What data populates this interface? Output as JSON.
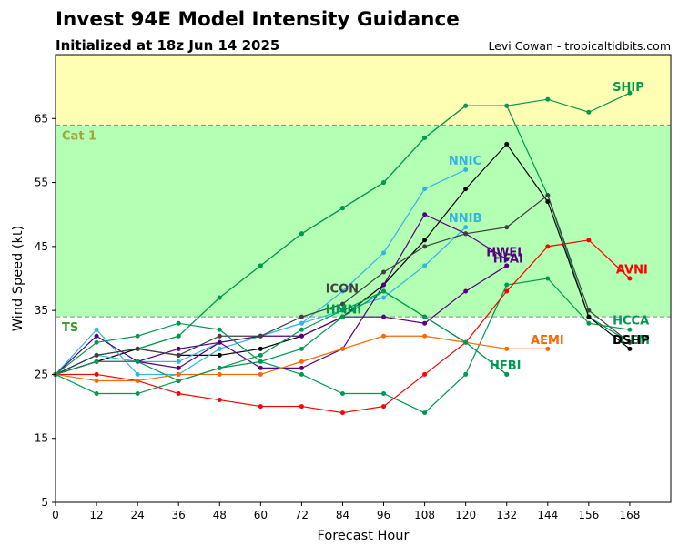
{
  "header": {
    "title": "Invest 94E Model Intensity Guidance",
    "subtitle": "Initialized at 18z Jun 14 2025",
    "credit": "Levi Cowan - tropicaltidbits.com"
  },
  "chart_data": {
    "type": "line",
    "title": "Invest 94E Model Intensity Guidance",
    "subtitle": "Initialized at 18z Jun 14 2025",
    "xlabel": "Forecast Hour",
    "ylabel": "Wind Speed (kt)",
    "xlim": [
      0,
      180
    ],
    "ylim": [
      5,
      75
    ],
    "xticks": [
      0,
      12,
      24,
      36,
      48,
      60,
      72,
      84,
      96,
      108,
      120,
      132,
      144,
      156,
      168
    ],
    "yticks": [
      5,
      15,
      25,
      35,
      45,
      55,
      65
    ],
    "bands": [
      {
        "label": "TS",
        "from": 34,
        "to": 64,
        "color": "#b3ffb3",
        "label_color": "#33a02c"
      },
      {
        "label": "Cat 1",
        "from": 64,
        "to": 75,
        "color": "#ffffb3",
        "label_color": "#a6a633"
      }
    ],
    "series": [
      {
        "name": "SHIP",
        "color": "#009950",
        "label_x": 163,
        "label_y": 70,
        "points": [
          [
            0,
            25
          ],
          [
            12,
            28
          ],
          [
            24,
            29
          ],
          [
            36,
            31
          ],
          [
            48,
            37
          ],
          [
            60,
            42
          ],
          [
            72,
            47
          ],
          [
            84,
            51
          ],
          [
            96,
            55
          ],
          [
            108,
            62
          ],
          [
            120,
            67
          ],
          [
            132,
            67
          ],
          [
            144,
            68
          ],
          [
            156,
            66
          ],
          [
            168,
            69
          ]
        ]
      },
      {
        "name": "LGEM",
        "color": "#009950",
        "label_x": 163,
        "label_y": 30.5,
        "points": [
          [
            0,
            25
          ],
          [
            12,
            28
          ],
          [
            24,
            29
          ],
          [
            36,
            31
          ],
          [
            48,
            37
          ],
          [
            60,
            42
          ],
          [
            72,
            47
          ],
          [
            84,
            51
          ],
          [
            96,
            55
          ],
          [
            108,
            62
          ],
          [
            120,
            67
          ],
          [
            132,
            67
          ],
          [
            144,
            53
          ],
          [
            156,
            34
          ],
          [
            168,
            30
          ]
        ]
      },
      {
        "name": "DSHP",
        "color": "#000000",
        "label_x": 163,
        "label_y": 30.5,
        "points": [
          [
            0,
            25
          ],
          [
            12,
            27
          ],
          [
            24,
            29
          ],
          [
            36,
            28
          ],
          [
            48,
            28
          ],
          [
            60,
            29
          ],
          [
            72,
            31
          ],
          [
            84,
            34
          ],
          [
            96,
            39
          ],
          [
            108,
            46
          ],
          [
            120,
            54
          ],
          [
            132,
            61
          ],
          [
            144,
            52
          ],
          [
            156,
            34
          ],
          [
            168,
            29
          ]
        ]
      },
      {
        "name": "NNIC",
        "color": "#33b3e6",
        "label_x": 115,
        "label_y": 58.5,
        "points": [
          [
            0,
            25
          ],
          [
            12,
            32
          ],
          [
            24,
            25
          ],
          [
            36,
            25
          ],
          [
            48,
            29
          ],
          [
            60,
            31
          ],
          [
            72,
            33
          ],
          [
            84,
            38
          ],
          [
            96,
            44
          ],
          [
            108,
            54
          ],
          [
            120,
            57
          ]
        ]
      },
      {
        "name": "NNIB",
        "color": "#33b3e6",
        "label_x": 115,
        "label_y": 49.5,
        "points": [
          [
            0,
            25
          ],
          [
            12,
            28
          ],
          [
            24,
            27
          ],
          [
            36,
            27
          ],
          [
            48,
            30
          ],
          [
            60,
            31
          ],
          [
            72,
            33
          ],
          [
            84,
            35
          ],
          [
            96,
            37
          ],
          [
            108,
            42
          ],
          [
            120,
            48
          ]
        ]
      },
      {
        "name": "HWFI",
        "color": "#550080",
        "label_x": 126,
        "label_y": 44.2,
        "points": [
          [
            0,
            25
          ],
          [
            12,
            31
          ],
          [
            24,
            27
          ],
          [
            36,
            26
          ],
          [
            48,
            30
          ],
          [
            60,
            26
          ],
          [
            72,
            26
          ],
          [
            84,
            29
          ],
          [
            96,
            39
          ],
          [
            108,
            50
          ],
          [
            120,
            47
          ],
          [
            132,
            43
          ]
        ]
      },
      {
        "name": "HFAI",
        "color": "#550080",
        "label_x": 128,
        "label_y": 43.2,
        "points": [
          [
            0,
            25
          ],
          [
            12,
            27
          ],
          [
            24,
            27
          ],
          [
            36,
            29
          ],
          [
            48,
            30
          ],
          [
            60,
            31
          ],
          [
            72,
            31
          ],
          [
            84,
            34
          ],
          [
            96,
            34
          ],
          [
            108,
            33
          ],
          [
            120,
            38
          ],
          [
            132,
            42
          ]
        ]
      },
      {
        "name": "ICON",
        "color": "#404040",
        "label_x": 79,
        "label_y": 38.5,
        "points": [
          [
            0,
            25
          ],
          [
            12,
            28
          ],
          [
            24,
            29
          ],
          [
            36,
            28
          ],
          [
            48,
            31
          ],
          [
            60,
            31
          ],
          [
            72,
            34
          ],
          [
            84,
            36
          ],
          [
            96,
            41
          ],
          [
            108,
            45
          ],
          [
            120,
            47
          ],
          [
            132,
            48
          ],
          [
            144,
            53
          ],
          [
            156,
            35
          ],
          [
            168,
            30
          ]
        ]
      },
      {
        "name": "HMNI",
        "color": "#009950",
        "label_x": 79,
        "label_y": 35.2,
        "points": [
          [
            0,
            25
          ],
          [
            12,
            30
          ],
          [
            24,
            31
          ],
          [
            36,
            33
          ],
          [
            48,
            32
          ],
          [
            60,
            27
          ],
          [
            72,
            25
          ],
          [
            84,
            22
          ],
          [
            96,
            22
          ],
          [
            108,
            19
          ],
          [
            120,
            25
          ],
          [
            132,
            39
          ],
          [
            144,
            40
          ],
          [
            156,
            33
          ],
          [
            168,
            32
          ]
        ]
      },
      {
        "name": "AVNI",
        "color": "#ff0000",
        "label_x": 164,
        "label_y": 41.5,
        "points": [
          [
            0,
            25
          ],
          [
            12,
            25
          ],
          [
            24,
            24
          ],
          [
            36,
            22
          ],
          [
            48,
            21
          ],
          [
            60,
            20
          ],
          [
            72,
            20
          ],
          [
            84,
            19
          ],
          [
            96,
            20
          ],
          [
            108,
            25
          ],
          [
            120,
            30
          ],
          [
            132,
            38
          ],
          [
            144,
            45
          ],
          [
            156,
            46
          ],
          [
            168,
            40
          ]
        ]
      },
      {
        "name": "HCCA",
        "color": "#009950",
        "label_x": 163,
        "label_y": 33.5,
        "points": [
          [
            0,
            25
          ],
          [
            12,
            27
          ],
          [
            24,
            27
          ],
          [
            36,
            24
          ],
          [
            48,
            26
          ],
          [
            60,
            28
          ],
          [
            72,
            32
          ],
          [
            84,
            35
          ],
          [
            96,
            38
          ],
          [
            108,
            34
          ],
          [
            120,
            30
          ],
          [
            132,
            25
          ]
        ]
      },
      {
        "name": "AEMI",
        "color": "#ff6600",
        "label_x": 139,
        "label_y": 30.5,
        "points": [
          [
            0,
            25
          ],
          [
            12,
            24
          ],
          [
            24,
            24
          ],
          [
            36,
            25
          ],
          [
            48,
            25
          ],
          [
            60,
            25
          ],
          [
            72,
            27
          ],
          [
            84,
            29
          ],
          [
            96,
            31
          ],
          [
            108,
            31
          ],
          [
            120,
            30
          ],
          [
            132,
            29
          ],
          [
            144,
            29
          ]
        ]
      },
      {
        "name": "HFBI",
        "color": "#009950",
        "label_x": 127,
        "label_y": 26.5,
        "points": [
          [
            0,
            25
          ],
          [
            12,
            22
          ],
          [
            24,
            22
          ],
          [
            36,
            24
          ],
          [
            48,
            26
          ],
          [
            60,
            27
          ],
          [
            72,
            29
          ],
          [
            84,
            34
          ],
          [
            96,
            38
          ],
          [
            108,
            34
          ],
          [
            120,
            30
          ],
          [
            132,
            25
          ]
        ]
      }
    ]
  }
}
